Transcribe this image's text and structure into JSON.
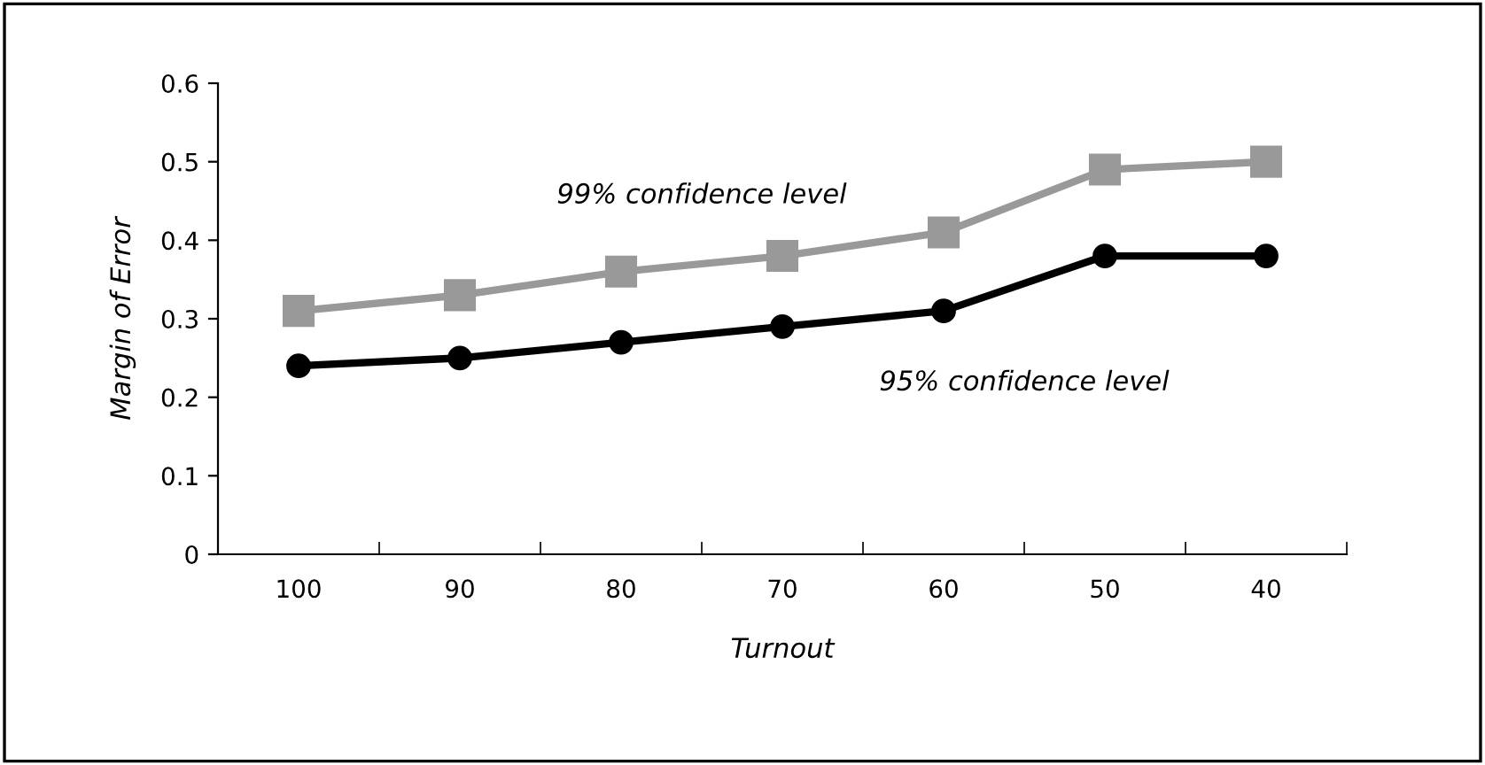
{
  "chart_data": {
    "type": "line",
    "xlabel": "Turnout",
    "ylabel": "Margin of Error",
    "categories": [
      "100",
      "90",
      "80",
      "70",
      "60",
      "50",
      "40"
    ],
    "series": [
      {
        "name": "99% confidence level",
        "color": "#999999",
        "marker": "square",
        "values": [
          0.31,
          0.33,
          0.36,
          0.38,
          0.41,
          0.49,
          0.5
        ]
      },
      {
        "name": "95% confidence level",
        "color": "#000000",
        "marker": "circle",
        "values": [
          0.24,
          0.25,
          0.27,
          0.29,
          0.31,
          0.38,
          0.38
        ]
      }
    ],
    "ylim": [
      0,
      0.6
    ],
    "yticks": [
      0,
      0.1,
      0.2,
      0.3,
      0.4,
      0.5,
      0.6
    ],
    "grid": false,
    "legend": false
  }
}
